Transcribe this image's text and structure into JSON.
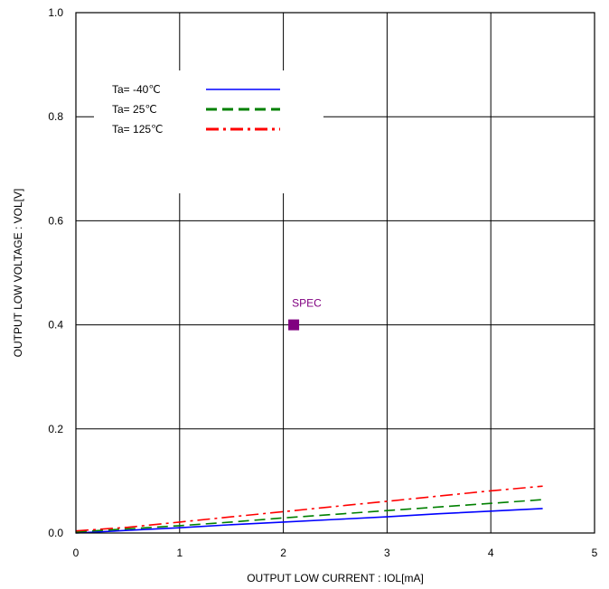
{
  "chart_data": {
    "type": "line",
    "xlabel": "OUTPUT LOW CURRENT : IOL[mA]",
    "ylabel": "OUTPUT LOW VOLTAGE : VOL[V]",
    "xlim": [
      0,
      5
    ],
    "ylim": [
      0,
      1.0
    ],
    "xticks": [
      "0",
      "1",
      "2",
      "3",
      "4",
      "5"
    ],
    "yticks": [
      "0.0",
      "0.2",
      "0.4",
      "0.6",
      "0.8",
      "1.0"
    ],
    "grid": true,
    "legend_position": "top-left",
    "series": [
      {
        "name": "Ta= -40℃",
        "color": "#0000ff",
        "dash": "solid",
        "x": [
          0,
          0.5,
          1,
          1.5,
          2,
          2.5,
          3,
          3.5,
          4,
          4.5
        ],
        "y": [
          0.0,
          0.005,
          0.01,
          0.016,
          0.021,
          0.026,
          0.031,
          0.037,
          0.042,
          0.047
        ]
      },
      {
        "name": "Ta=  25℃",
        "color": "#008000",
        "dash": "dashed",
        "x": [
          0,
          0.5,
          1,
          1.5,
          2,
          2.5,
          3,
          3.5,
          4,
          4.5
        ],
        "y": [
          0.002,
          0.008,
          0.014,
          0.021,
          0.029,
          0.036,
          0.043,
          0.05,
          0.057,
          0.064
        ]
      },
      {
        "name": "Ta= 125℃",
        "color": "#ff0000",
        "dash": "dashdot",
        "x": [
          0,
          0.5,
          1,
          1.5,
          2,
          2.5,
          3,
          3.5,
          4,
          4.5
        ],
        "y": [
          0.004,
          0.011,
          0.021,
          0.031,
          0.041,
          0.051,
          0.061,
          0.071,
          0.081,
          0.09
        ]
      }
    ],
    "annotations": [
      {
        "text": "SPEC",
        "x": 2.1,
        "y": 0.4,
        "color": "#800080",
        "marker": "square"
      }
    ]
  }
}
